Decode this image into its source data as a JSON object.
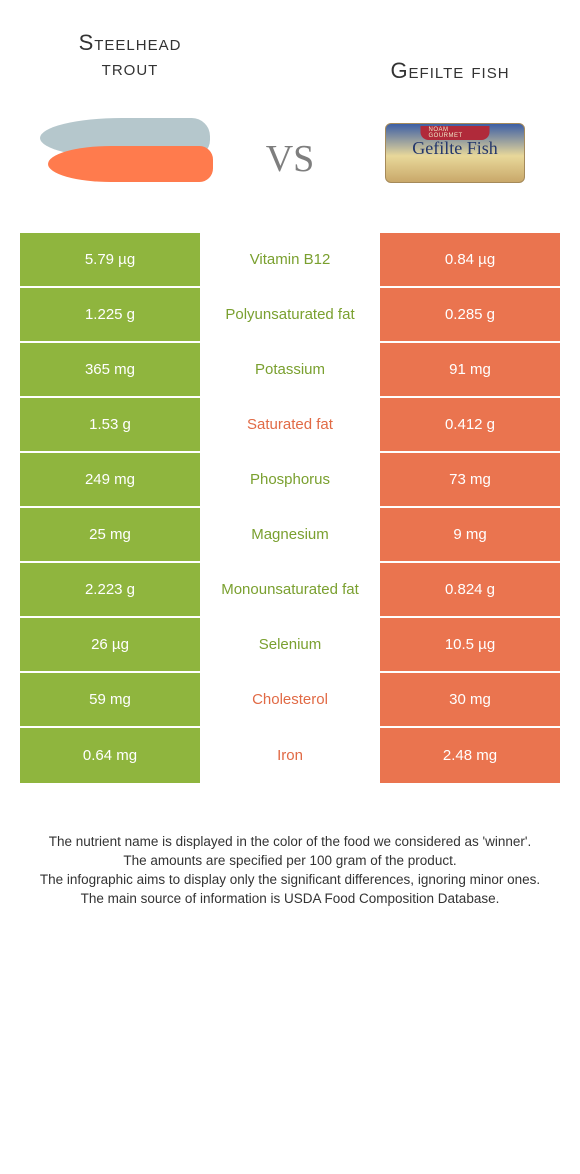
{
  "header": {
    "left_title_l1": "Steelhead",
    "left_title_l2": "trout",
    "right_title": "Gefilte fish"
  },
  "vs_label": "vs",
  "gefilte_box": {
    "band": "NOAM GOURMET",
    "script": "Gefilte Fish"
  },
  "palette": {
    "left_bg": "#8fb53e",
    "right_bg": "#ea744f",
    "mid_green": "#7aa02f",
    "mid_orange": "#e16a45"
  },
  "rows": [
    {
      "left": "5.79 µg",
      "name": "Vitamin B12",
      "winner": "left",
      "right": "0.84 µg"
    },
    {
      "left": "1.225 g",
      "name": "Polyunsaturated fat",
      "winner": "left",
      "right": "0.285 g"
    },
    {
      "left": "365 mg",
      "name": "Potassium",
      "winner": "left",
      "right": "91 mg"
    },
    {
      "left": "1.53 g",
      "name": "Saturated fat",
      "winner": "right",
      "right": "0.412 g"
    },
    {
      "left": "249 mg",
      "name": "Phosphorus",
      "winner": "left",
      "right": "73 mg"
    },
    {
      "left": "25 mg",
      "name": "Magnesium",
      "winner": "left",
      "right": "9 mg"
    },
    {
      "left": "2.223 g",
      "name": "Monounsaturated fat",
      "winner": "left",
      "right": "0.824 g"
    },
    {
      "left": "26 µg",
      "name": "Selenium",
      "winner": "left",
      "right": "10.5 µg"
    },
    {
      "left": "59 mg",
      "name": "Cholesterol",
      "winner": "right",
      "right": "30 mg"
    },
    {
      "left": "0.64 mg",
      "name": "Iron",
      "winner": "right",
      "right": "2.48 mg"
    }
  ],
  "footer": {
    "l1": "The nutrient name is displayed in the color of the food we considered as 'winner'.",
    "l2": "The amounts are specified per 100 gram of the product.",
    "l3": "The infographic aims to display only the significant differences, ignoring minor ones.",
    "l4": "The main source of information is USDA Food Composition Database."
  }
}
